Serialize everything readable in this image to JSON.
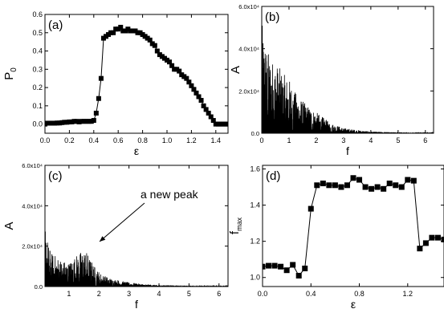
{
  "chart_data": [
    {
      "id": "a",
      "type": "line",
      "panel_label": "(a)",
      "xlabel": "ε",
      "ylabel": "P",
      "ylabel_sub": "0",
      "xlim": [
        0.0,
        1.5
      ],
      "ylim": [
        -0.05,
        0.6
      ],
      "xticks": [
        0.0,
        0.2,
        0.4,
        0.6,
        0.8,
        1.0,
        1.2,
        1.4
      ],
      "xtick_labels": [
        "0.0",
        "0.2",
        "0.4",
        "0.6",
        "0.8",
        "1.0",
        "1.2",
        "1.4"
      ],
      "yticks": [
        0.0,
        0.1,
        0.2,
        0.3,
        0.4,
        0.5,
        0.6
      ],
      "ytick_labels": [
        "0.0",
        "0.1",
        "0.2",
        "0.3",
        "0.4",
        "0.5",
        "0.6"
      ],
      "marker": "square",
      "x": [
        0.0,
        0.02,
        0.04,
        0.06,
        0.08,
        0.1,
        0.12,
        0.14,
        0.16,
        0.18,
        0.2,
        0.22,
        0.24,
        0.26,
        0.28,
        0.3,
        0.32,
        0.34,
        0.36,
        0.38,
        0.4,
        0.42,
        0.44,
        0.46,
        0.48,
        0.5,
        0.52,
        0.54,
        0.56,
        0.58,
        0.6,
        0.62,
        0.64,
        0.66,
        0.68,
        0.7,
        0.72,
        0.74,
        0.76,
        0.78,
        0.8,
        0.82,
        0.84,
        0.86,
        0.88,
        0.9,
        0.92,
        0.94,
        0.96,
        0.98,
        1.0,
        1.02,
        1.04,
        1.06,
        1.08,
        1.1,
        1.12,
        1.14,
        1.16,
        1.18,
        1.2,
        1.22,
        1.24,
        1.26,
        1.28,
        1.3,
        1.32,
        1.34,
        1.36,
        1.38,
        1.4,
        1.42,
        1.44,
        1.46,
        1.48,
        1.5
      ],
      "y": [
        0.0,
        0.005,
        0.005,
        0.005,
        0.005,
        0.006,
        0.006,
        0.008,
        0.01,
        0.01,
        0.012,
        0.012,
        0.015,
        0.015,
        0.012,
        0.015,
        0.015,
        0.015,
        0.015,
        0.015,
        0.02,
        0.06,
        0.14,
        0.25,
        0.47,
        0.48,
        0.49,
        0.5,
        0.5,
        0.52,
        0.52,
        0.53,
        0.51,
        0.51,
        0.52,
        0.51,
        0.51,
        0.51,
        0.5,
        0.5,
        0.49,
        0.48,
        0.47,
        0.46,
        0.44,
        0.43,
        0.4,
        0.38,
        0.37,
        0.36,
        0.35,
        0.34,
        0.32,
        0.3,
        0.3,
        0.29,
        0.27,
        0.26,
        0.25,
        0.23,
        0.21,
        0.19,
        0.17,
        0.15,
        0.13,
        0.1,
        0.08,
        0.06,
        0.04,
        0.02,
        0.0,
        0.0,
        0.0,
        0.0,
        0.0,
        0.0
      ]
    },
    {
      "id": "b",
      "type": "line",
      "panel_label": "(b)",
      "xlabel": "f",
      "ylabel": "A",
      "xlim": [
        0,
        6.3
      ],
      "ylim": [
        0,
        60000
      ],
      "xticks": [
        0,
        1,
        2,
        3,
        4,
        5,
        6
      ],
      "xtick_labels": [
        "0",
        "1",
        "2",
        "3",
        "4",
        "5",
        "6"
      ],
      "yticks": [
        0,
        20000,
        40000,
        60000
      ],
      "ytick_labels": [
        "0.0",
        "2.0x10⁴",
        "4.0x10⁴",
        "6.0x10⁴"
      ],
      "spectrum_envelope": {
        "f": [
          0.0,
          0.05,
          0.2,
          0.4,
          0.6,
          0.8,
          1.0,
          1.2,
          1.4,
          1.6,
          1.8,
          2.0,
          2.2,
          2.5,
          2.8,
          3.0,
          3.5,
          4.0,
          5.0,
          6.0
        ],
        "max": [
          52000,
          50000,
          40000,
          35000,
          32000,
          28000,
          26000,
          20000,
          17000,
          14000,
          12000,
          10000,
          8000,
          5000,
          3500,
          2500,
          1500,
          800,
          400,
          200
        ]
      }
    },
    {
      "id": "c",
      "type": "line",
      "panel_label": "(c)",
      "xlabel": "f",
      "ylabel": "A",
      "annotation": "a new peak",
      "xlim": [
        0.2,
        6.3
      ],
      "ylim": [
        0,
        60000
      ],
      "xticks": [
        1,
        2,
        3,
        4,
        5,
        6
      ],
      "xtick_labels": [
        "1",
        "2",
        "3",
        "4",
        "5",
        "6"
      ],
      "yticks": [
        0,
        20000,
        40000,
        60000
      ],
      "ytick_labels": [
        "0.0",
        "2.0x10⁴",
        "4.0x10⁴",
        "6.0x10⁴"
      ],
      "spectrum_envelope": {
        "f": [
          0.2,
          0.25,
          0.3,
          0.4,
          0.6,
          0.8,
          1.0,
          1.2,
          1.4,
          1.55,
          1.7,
          1.9,
          2.1,
          2.4,
          2.7,
          3.0,
          3.5,
          4.0,
          5.0,
          6.0
        ],
        "max": [
          32000,
          28000,
          22000,
          17000,
          15000,
          13000,
          12000,
          15000,
          17500,
          18500,
          14000,
          9000,
          6000,
          4000,
          3000,
          2000,
          1200,
          700,
          400,
          200
        ]
      }
    },
    {
      "id": "d",
      "type": "line",
      "panel_label": "(d)",
      "xlabel": "ε",
      "ylabel": "f",
      "ylabel_sub": "max",
      "xlim": [
        0.0,
        1.5
      ],
      "ylim": [
        0.95,
        1.62
      ],
      "xticks": [
        0.0,
        0.4,
        0.8,
        1.2
      ],
      "xtick_labels": [
        "0.0",
        "0.4",
        "0.8",
        "1.2"
      ],
      "yticks": [
        1.0,
        1.2,
        1.4,
        1.6
      ],
      "ytick_labels": [
        "1.0",
        "1.2",
        "1.4",
        "1.6"
      ],
      "marker": "square",
      "x": [
        0.0,
        0.05,
        0.1,
        0.15,
        0.2,
        0.25,
        0.3,
        0.35,
        0.4,
        0.45,
        0.5,
        0.55,
        0.6,
        0.65,
        0.7,
        0.75,
        0.8,
        0.85,
        0.9,
        0.95,
        1.0,
        1.05,
        1.1,
        1.15,
        1.2,
        1.25,
        1.3,
        1.35,
        1.4,
        1.45,
        1.5
      ],
      "y": [
        1.06,
        1.065,
        1.065,
        1.06,
        1.04,
        1.07,
        1.01,
        1.05,
        1.38,
        1.51,
        1.52,
        1.51,
        1.51,
        1.5,
        1.51,
        1.55,
        1.54,
        1.5,
        1.49,
        1.5,
        1.49,
        1.52,
        1.51,
        1.5,
        1.54,
        1.535,
        1.16,
        1.19,
        1.22,
        1.22,
        1.21
      ]
    }
  ]
}
